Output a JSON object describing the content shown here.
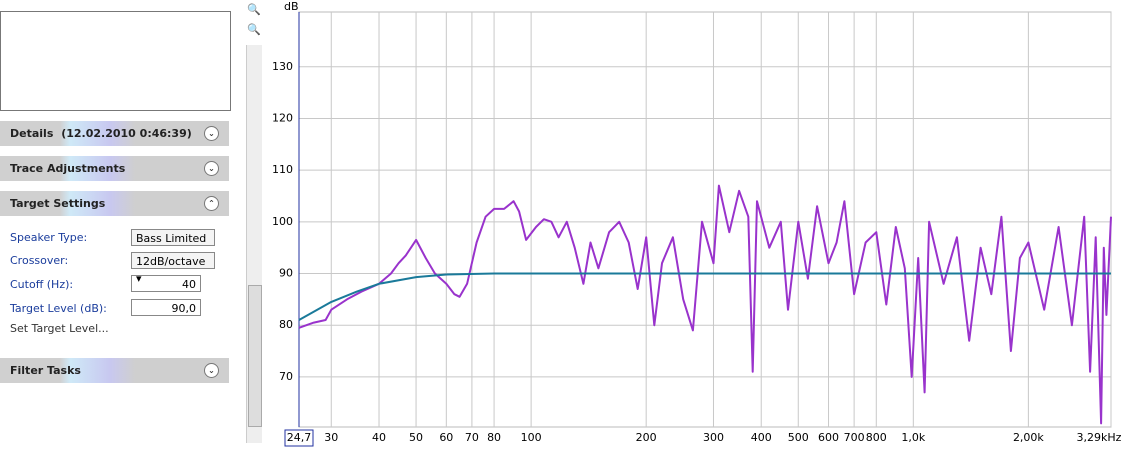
{
  "panel": {
    "details": {
      "title": "Details",
      "timestamp": "(12.02.2010 0:46:39)"
    },
    "trace_adjustments": {
      "title": "Trace Adjustments"
    },
    "target_settings": {
      "title": "Target Settings",
      "speaker_type_label": "Speaker Type:",
      "speaker_type": "Bass Limited",
      "crossover_label": "Crossover:",
      "crossover": "12dB/octave",
      "cutoff_label": "Cutoff (Hz):",
      "cutoff": "40",
      "target_level_label": "Target Level (dB):",
      "target_level": "90,0",
      "set_target_level": "Set Target Level..."
    },
    "filter_tasks": {
      "title": "Filter Tasks"
    }
  },
  "chart_data": {
    "type": "line",
    "y_label": "dB",
    "xscale": "log",
    "grid": true,
    "xlim": [
      24.7,
      3290
    ],
    "ylim": [
      60.3,
      140.6
    ],
    "xticks": [
      {
        "value": 24.7,
        "label": "24,7"
      },
      30,
      40,
      50,
      60,
      70,
      80,
      100,
      200,
      300,
      400,
      500,
      600,
      700,
      800,
      {
        "value": 1000,
        "label": "1,0k"
      },
      {
        "value": 2000,
        "label": "2,00k"
      },
      {
        "value": 3290,
        "label": "3,29kHz"
      }
    ],
    "yticks": [
      70,
      80,
      90,
      100,
      110,
      120,
      130
    ],
    "series": [
      {
        "color": "#9933cc",
        "x": [
          24.7,
          27,
          29,
          30,
          33,
          36,
          40,
          43,
          45,
          47,
          50,
          53,
          56,
          60,
          63,
          65,
          68,
          72,
          76,
          80,
          85,
          90,
          93,
          97,
          103,
          108,
          113,
          118,
          124,
          130,
          137,
          143,
          150,
          160,
          170,
          180,
          190,
          200,
          210,
          220,
          235,
          250,
          265,
          280,
          300,
          310,
          330,
          350,
          370,
          380,
          390,
          420,
          450,
          470,
          500,
          530,
          560,
          600,
          630,
          660,
          700,
          750,
          800,
          850,
          900,
          950,
          990,
          1030,
          1070,
          1100,
          1200,
          1300,
          1400,
          1500,
          1600,
          1700,
          1800,
          1900,
          2000,
          2200,
          2400,
          2600,
          2800,
          2900,
          3000,
          3100,
          3150,
          3200,
          3290
        ],
        "values": [
          79.5,
          80.5,
          81,
          83,
          85,
          86.5,
          88,
          90,
          92,
          93.5,
          96.5,
          93,
          90,
          88,
          86,
          85.5,
          88,
          96,
          101,
          102.5,
          102.5,
          104,
          102,
          96.5,
          99,
          100.5,
          100,
          97,
          100,
          95,
          88,
          96,
          91,
          98,
          100,
          96,
          87,
          97,
          80,
          92,
          97,
          85,
          79,
          100,
          92,
          107,
          98,
          106,
          101,
          71,
          104,
          95,
          100,
          83,
          100,
          89,
          103,
          92,
          96,
          104,
          86,
          96,
          98,
          84,
          99,
          91,
          70,
          93,
          67,
          100,
          88,
          97,
          77,
          95,
          86,
          101,
          75,
          93,
          96,
          83,
          99,
          80,
          101,
          71,
          97,
          61,
          95,
          82,
          101
        ]
      },
      {
        "color": "#1a7a9a",
        "x": [
          24.7,
          30,
          35,
          40,
          50,
          60,
          80,
          3290
        ],
        "values": [
          81,
          84.5,
          86.5,
          88,
          89.3,
          89.8,
          90,
          90
        ]
      }
    ]
  }
}
